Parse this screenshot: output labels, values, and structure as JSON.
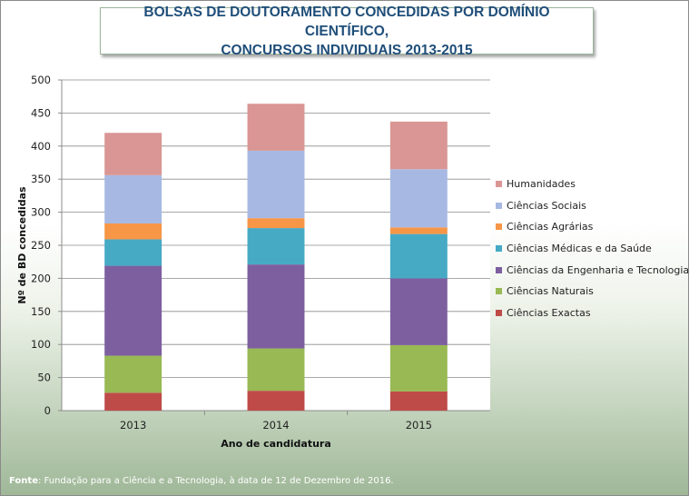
{
  "title": {
    "line1": "BOLSAS DE DOUTORAMENTO CONCEDIDAS POR DOMÍNIO CIENTÍFICO,",
    "line2": "CONCURSOS INDIVIDUAIS 2013-2015"
  },
  "source": {
    "label": "Fonte",
    "text": ": Fundação para a Ciência e a Tecnologia, à data de 12 de Dezembro de 2016."
  },
  "chart_data": {
    "type": "bar",
    "stacked": true,
    "title": "BOLSAS DE DOUTORAMENTO CONCEDIDAS POR DOMÍNIO CIENTÍFICO, CONCURSOS INDIVIDUAIS 2013-2015",
    "xlabel": "Ano de candidatura",
    "ylabel": "Nº de BD concedidas",
    "ylim": [
      0,
      500
    ],
    "yticks": [
      0,
      50,
      100,
      150,
      200,
      250,
      300,
      350,
      400,
      450,
      500
    ],
    "grid": true,
    "legend_position": "right",
    "categories": [
      "2013",
      "2014",
      "2015"
    ],
    "series": [
      {
        "name": "Ciências Exactas",
        "color": "#be4b48",
        "values": [
          27,
          30,
          29
        ]
      },
      {
        "name": "Ciências Naturais",
        "color": "#98b954",
        "values": [
          56,
          64,
          70
        ]
      },
      {
        "name": "Ciências da Engenharia e Tecnologias",
        "color": "#7d5fa0",
        "values": [
          136,
          127,
          101
        ]
      },
      {
        "name": "Ciências Médicas e da Saúde",
        "color": "#46aac5",
        "values": [
          40,
          55,
          67
        ]
      },
      {
        "name": "Ciências Agrárias",
        "color": "#f79646",
        "values": [
          24,
          15,
          10
        ]
      },
      {
        "name": "Ciências Sociais",
        "color": "#a7b9e3",
        "values": [
          73,
          102,
          88
        ]
      },
      {
        "name": "Humanidades",
        "color": "#d99694",
        "values": [
          64,
          71,
          72
        ]
      }
    ]
  }
}
